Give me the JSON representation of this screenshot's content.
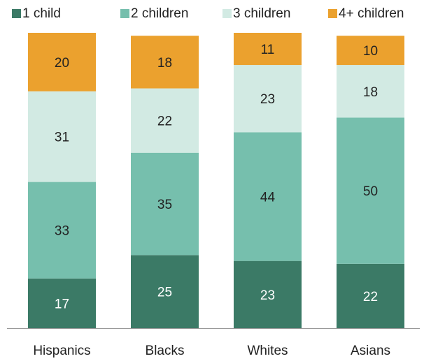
{
  "chart_data": {
    "type": "stacked-bar",
    "categories": [
      "Hispanics",
      "Blacks",
      "Whites",
      "Asians"
    ],
    "series": [
      {
        "name": "1 child",
        "color": "#3b7a66",
        "values": [
          17,
          25,
          23,
          22
        ]
      },
      {
        "name": "2 children",
        "color": "#76bfad",
        "values": [
          33,
          35,
          44,
          50
        ]
      },
      {
        "name": "3 children",
        "color": "#d2eae3",
        "values": [
          31,
          22,
          23,
          18
        ]
      },
      {
        "name": "4+ children",
        "color": "#eba12e",
        "values": [
          20,
          18,
          11,
          10
        ]
      }
    ]
  }
}
